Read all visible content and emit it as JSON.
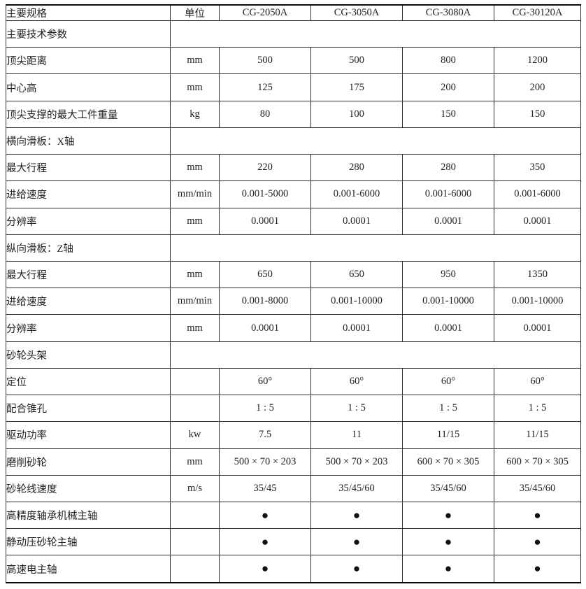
{
  "accent_colors": {
    "text": "#222222",
    "grid_line": "#2f2f2f",
    "outer_border": "#0a0a0a",
    "background": "#ffffff"
  },
  "table": {
    "header": {
      "spec": "主要规格",
      "unit": "单位",
      "models": [
        "CG-2050A",
        "CG-3050A",
        "CG-3080A",
        "CG-30120A"
      ]
    },
    "rows": [
      {
        "type": "section",
        "label": "主要技术参数"
      },
      {
        "type": "data",
        "label": "顶尖距离",
        "unit": "mm",
        "values": [
          "500",
          "500",
          "800",
          "1200"
        ]
      },
      {
        "type": "data",
        "label": "中心高",
        "unit": "mm",
        "values": [
          "125",
          "175",
          "200",
          "200"
        ]
      },
      {
        "type": "data",
        "label": "顶尖支撑的最大工件重量",
        "unit": "kg",
        "values": [
          "80",
          "100",
          "150",
          "150"
        ]
      },
      {
        "type": "section",
        "label": "横向滑板：X轴"
      },
      {
        "type": "data",
        "label": "最大行程",
        "unit": "mm",
        "values": [
          "220",
          "280",
          "280",
          "350"
        ]
      },
      {
        "type": "data",
        "label": "进给速度",
        "unit": "mm/min",
        "values": [
          "0.001-5000",
          "0.001-6000",
          "0.001-6000",
          "0.001-6000"
        ]
      },
      {
        "type": "data",
        "label": "分辨率",
        "unit": "mm",
        "values": [
          "0.0001",
          "0.0001",
          "0.0001",
          "0.0001"
        ]
      },
      {
        "type": "section",
        "label": "纵向滑板：Z轴"
      },
      {
        "type": "data",
        "label": "最大行程",
        "unit": "mm",
        "values": [
          "650",
          "650",
          "950",
          "1350"
        ]
      },
      {
        "type": "data",
        "label": "进给速度",
        "unit": "mm/min",
        "values": [
          "0.001-8000",
          "0.001-10000",
          "0.001-10000",
          "0.001-10000"
        ]
      },
      {
        "type": "data",
        "label": "分辨率",
        "unit": "mm",
        "values": [
          "0.0001",
          "0.0001",
          "0.0001",
          "0.0001"
        ]
      },
      {
        "type": "section",
        "label": "砂轮头架"
      },
      {
        "type": "data",
        "label": "定位",
        "unit": "",
        "values": [
          "60°",
          "60°",
          "60°",
          "60°"
        ]
      },
      {
        "type": "data",
        "label": "配合锥孔",
        "unit": "",
        "values": [
          "1 : 5",
          "1 : 5",
          "1 : 5",
          "1 : 5"
        ]
      },
      {
        "type": "data",
        "label": "驱动功率",
        "unit": "kw",
        "values": [
          "7.5",
          "11",
          "11/15",
          "11/15"
        ]
      },
      {
        "type": "data",
        "label": "磨削砂轮",
        "unit": "mm",
        "values": [
          "500 × 70 × 203",
          "500 × 70 × 203",
          "600 × 70 × 305",
          "600 × 70 × 305"
        ]
      },
      {
        "type": "data",
        "label": "砂轮线速度",
        "unit": "m/s",
        "values": [
          "35/45",
          "35/45/60",
          "35/45/60",
          "35/45/60"
        ]
      },
      {
        "type": "data",
        "label": "高精度轴承机械主轴",
        "unit": "",
        "values": [
          "●",
          "●",
          "●",
          "●"
        ]
      },
      {
        "type": "data",
        "label": "静动压砂轮主轴",
        "unit": "",
        "values": [
          "●",
          "●",
          "●",
          "●"
        ]
      },
      {
        "type": "data",
        "label": "高速电主轴",
        "unit": "",
        "values": [
          "●",
          "●",
          "●",
          "●"
        ]
      }
    ]
  }
}
